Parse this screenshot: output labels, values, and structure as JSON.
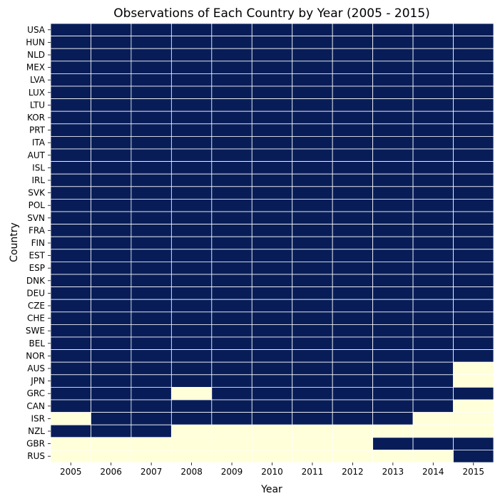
{
  "chart_data": {
    "type": "heatmap",
    "title": "Observations of Each Country by Year (2005 - 2015)",
    "xlabel": "Year",
    "ylabel": "Country",
    "x": [
      "2005",
      "2006",
      "2007",
      "2008",
      "2009",
      "2010",
      "2011",
      "2012",
      "2013",
      "2014",
      "2015"
    ],
    "y": [
      "USA",
      "HUN",
      "NLD",
      "MEX",
      "LVA",
      "LUX",
      "LTU",
      "KOR",
      "PRT",
      "ITA",
      "AUT",
      "ISL",
      "IRL",
      "SVK",
      "POL",
      "SVN",
      "FRA",
      "FIN",
      "EST",
      "ESP",
      "DNK",
      "DEU",
      "CZE",
      "CHE",
      "SWE",
      "BEL",
      "NOR",
      "AUS",
      "JPN",
      "GRC",
      "CAN",
      "ISR",
      "NZL",
      "GBR",
      "RUS"
    ],
    "values": [
      [
        1,
        1,
        1,
        1,
        1,
        1,
        1,
        1,
        1,
        1,
        1
      ],
      [
        1,
        1,
        1,
        1,
        1,
        1,
        1,
        1,
        1,
        1,
        1
      ],
      [
        1,
        1,
        1,
        1,
        1,
        1,
        1,
        1,
        1,
        1,
        1
      ],
      [
        1,
        1,
        1,
        1,
        1,
        1,
        1,
        1,
        1,
        1,
        1
      ],
      [
        1,
        1,
        1,
        1,
        1,
        1,
        1,
        1,
        1,
        1,
        1
      ],
      [
        1,
        1,
        1,
        1,
        1,
        1,
        1,
        1,
        1,
        1,
        1
      ],
      [
        1,
        1,
        1,
        1,
        1,
        1,
        1,
        1,
        1,
        1,
        1
      ],
      [
        1,
        1,
        1,
        1,
        1,
        1,
        1,
        1,
        1,
        1,
        1
      ],
      [
        1,
        1,
        1,
        1,
        1,
        1,
        1,
        1,
        1,
        1,
        1
      ],
      [
        1,
        1,
        1,
        1,
        1,
        1,
        1,
        1,
        1,
        1,
        1
      ],
      [
        1,
        1,
        1,
        1,
        1,
        1,
        1,
        1,
        1,
        1,
        1
      ],
      [
        1,
        1,
        1,
        1,
        1,
        1,
        1,
        1,
        1,
        1,
        1
      ],
      [
        1,
        1,
        1,
        1,
        1,
        1,
        1,
        1,
        1,
        1,
        1
      ],
      [
        1,
        1,
        1,
        1,
        1,
        1,
        1,
        1,
        1,
        1,
        1
      ],
      [
        1,
        1,
        1,
        1,
        1,
        1,
        1,
        1,
        1,
        1,
        1
      ],
      [
        1,
        1,
        1,
        1,
        1,
        1,
        1,
        1,
        1,
        1,
        1
      ],
      [
        1,
        1,
        1,
        1,
        1,
        1,
        1,
        1,
        1,
        1,
        1
      ],
      [
        1,
        1,
        1,
        1,
        1,
        1,
        1,
        1,
        1,
        1,
        1
      ],
      [
        1,
        1,
        1,
        1,
        1,
        1,
        1,
        1,
        1,
        1,
        1
      ],
      [
        1,
        1,
        1,
        1,
        1,
        1,
        1,
        1,
        1,
        1,
        1
      ],
      [
        1,
        1,
        1,
        1,
        1,
        1,
        1,
        1,
        1,
        1,
        1
      ],
      [
        1,
        1,
        1,
        1,
        1,
        1,
        1,
        1,
        1,
        1,
        1
      ],
      [
        1,
        1,
        1,
        1,
        1,
        1,
        1,
        1,
        1,
        1,
        1
      ],
      [
        1,
        1,
        1,
        1,
        1,
        1,
        1,
        1,
        1,
        1,
        1
      ],
      [
        1,
        1,
        1,
        1,
        1,
        1,
        1,
        1,
        1,
        1,
        1
      ],
      [
        1,
        1,
        1,
        1,
        1,
        1,
        1,
        1,
        1,
        1,
        1
      ],
      [
        1,
        1,
        1,
        1,
        1,
        1,
        1,
        1,
        1,
        1,
        1
      ],
      [
        1,
        1,
        1,
        1,
        1,
        1,
        1,
        1,
        1,
        1,
        0
      ],
      [
        1,
        1,
        1,
        1,
        1,
        1,
        1,
        1,
        1,
        1,
        0
      ],
      [
        1,
        1,
        1,
        0,
        1,
        1,
        1,
        1,
        1,
        1,
        1
      ],
      [
        1,
        1,
        1,
        1,
        1,
        1,
        1,
        1,
        1,
        1,
        0
      ],
      [
        0,
        1,
        1,
        1,
        1,
        1,
        1,
        1,
        1,
        0,
        0
      ],
      [
        1,
        1,
        1,
        0,
        0,
        0,
        0,
        0,
        0,
        0,
        0
      ],
      [
        0,
        0,
        0,
        0,
        0,
        0,
        0,
        0,
        1,
        1,
        1
      ],
      [
        0,
        0,
        0,
        0,
        0,
        0,
        0,
        0,
        0,
        0,
        1
      ]
    ],
    "colors": {
      "observed": "#081d58",
      "missing": "#ffffd9",
      "cell_border": "#ffffff"
    },
    "colorbar": false,
    "grid": false
  }
}
